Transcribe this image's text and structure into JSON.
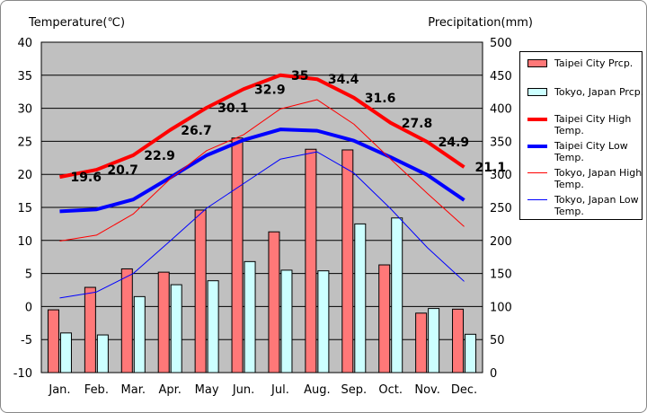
{
  "chart_data": {
    "type": "bar",
    "y_left_label": "Temperature(℃)",
    "y_right_label": "Precipitation(mm)",
    "categories": [
      "Jan.",
      "Feb.",
      "Mar.",
      "Apr.",
      "May",
      "Jun.",
      "Jul.",
      "Aug.",
      "Sep.",
      "Oct.",
      "Nov.",
      "Dec."
    ],
    "y_left_lim": [
      -10,
      40
    ],
    "y_right_lim": [
      0,
      500
    ],
    "y_left_ticks": [
      "-10",
      "-5",
      "0",
      "5",
      "10",
      "15",
      "20",
      "25",
      "30",
      "35",
      "40"
    ],
    "y_right_ticks": [
      "0",
      "50",
      "100",
      "150",
      "200",
      "250",
      "300",
      "350",
      "400",
      "450",
      "500"
    ],
    "grid": true,
    "legend_position": "right",
    "series": [
      {
        "name": "Taipei City Prcp.",
        "kind": "bar",
        "axis": "right",
        "color": "#ff7878",
        "values": [
          95,
          129,
          157,
          152,
          246,
          355,
          213,
          338,
          337,
          163,
          90,
          96
        ]
      },
      {
        "name": "Tokyo, Japan Prcp.",
        "kind": "bar",
        "axis": "right",
        "color": "#ccffff",
        "values": [
          60,
          57,
          115,
          133,
          139,
          168,
          155,
          154,
          225,
          234,
          97,
          58
        ]
      },
      {
        "name": "Taipei City High Temp.",
        "kind": "line",
        "axis": "left",
        "color": "#ff0000",
        "values": [
          19.6,
          20.7,
          22.9,
          26.7,
          30.1,
          32.9,
          35,
          34.4,
          31.6,
          27.8,
          24.9,
          21.1
        ],
        "data_labels": [
          "19.6",
          "20.7",
          "22.9",
          "26.7",
          "30.1",
          "32.9",
          "35",
          "34.4",
          "31.6",
          "27.8",
          "24.9",
          "21.1"
        ]
      },
      {
        "name": "Taipei City Low Temp.",
        "kind": "line",
        "axis": "left",
        "color": "#0000ff",
        "values": [
          14.4,
          14.7,
          16.2,
          19.5,
          22.9,
          25.2,
          26.8,
          26.6,
          25.1,
          22.6,
          19.9,
          16.1
        ]
      },
      {
        "name": "Tokyo, Japan High Temp.",
        "kind": "line",
        "axis": "left",
        "color": "#ff0000",
        "values": [
          9.9,
          10.8,
          14.0,
          19.3,
          23.6,
          26.0,
          29.9,
          31.3,
          27.6,
          22.3,
          17.1,
          12.1
        ]
      },
      {
        "name": "Tokyo, Japan Low Temp.",
        "kind": "line",
        "axis": "left",
        "color": "#0000ff",
        "values": [
          1.3,
          2.2,
          5.0,
          9.9,
          14.9,
          18.6,
          22.3,
          23.4,
          20.2,
          14.8,
          8.9,
          3.8
        ]
      }
    ]
  },
  "legend": [
    {
      "label": "Taipei City Prcp.",
      "kind": "bar",
      "color": "#ff7878"
    },
    {
      "label": "Tokyo, Japan Prcp.",
      "kind": "bar",
      "color": "#ccffff"
    },
    {
      "label": "Taipei City High Temp.",
      "kind": "line",
      "color": "#ff0000"
    },
    {
      "label": "Taipei City Low Temp.",
      "kind": "line",
      "color": "#0000ff"
    },
    {
      "label": "Tokyo, Japan High Temp.",
      "kind": "line",
      "color": "#ff0000"
    },
    {
      "label": "Tokyo, Japan Low Temp.",
      "kind": "line",
      "color": "#0000ff"
    }
  ]
}
